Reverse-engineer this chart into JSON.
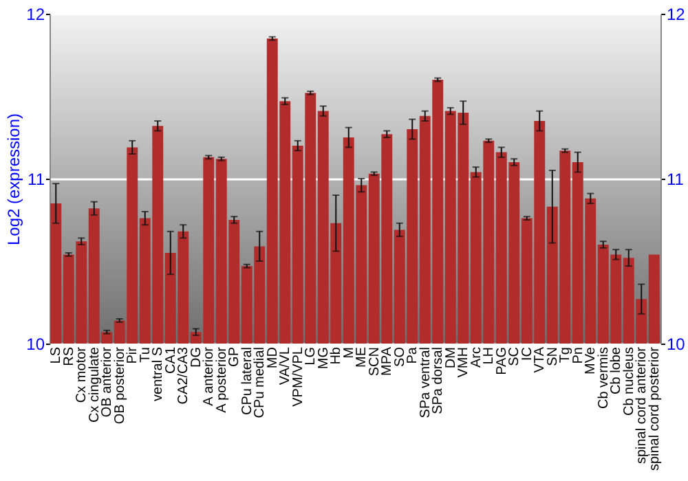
{
  "chart_data": {
    "type": "bar",
    "ylabel": "Log2 (expression)",
    "categories": [
      "LS",
      "RS",
      "Cx motor",
      "Cx cingulate",
      "OB anterior",
      "OB posterior",
      "Pir",
      "Tu",
      "ventral S",
      "CA1",
      "CA2/CA3",
      "DG",
      "A anterior",
      "A posterior",
      "GP",
      "CPu lateral",
      "CPu medial",
      "MD",
      "VA/VL",
      "VPM/VPL",
      "LG",
      "MG",
      "Hb",
      "M",
      "ME",
      "SCN",
      "MPA",
      "SO",
      "Pa",
      "SPa ventral",
      "SPa dorsal",
      "DM",
      "VMH",
      "Arc",
      "LH",
      "PAG",
      "SC",
      "IC",
      "VTA",
      "SN",
      "Tg",
      "Pn",
      "MVe",
      "Cb vermis",
      "Cb lobe",
      "Cb nucleus",
      "spinal cord anterior",
      "spinal cord posterior"
    ],
    "values": [
      10.85,
      10.54,
      10.62,
      10.82,
      10.07,
      10.14,
      11.19,
      10.76,
      11.32,
      10.55,
      10.68,
      10.07,
      11.13,
      11.12,
      10.75,
      10.47,
      10.59,
      11.85,
      11.47,
      11.2,
      11.52,
      11.41,
      10.73,
      11.25,
      10.96,
      11.03,
      11.27,
      10.69,
      11.3,
      11.38,
      11.6,
      11.41,
      11.4,
      11.04,
      11.23,
      11.16,
      11.1,
      10.76,
      11.35,
      10.83,
      11.17,
      11.1,
      10.88,
      10.6,
      10.54,
      10.52,
      10.27,
      10.54
    ],
    "errors": [
      0.12,
      0.01,
      0.02,
      0.04,
      0.01,
      0.01,
      0.04,
      0.04,
      0.03,
      0.13,
      0.04,
      0.02,
      0.01,
      0.01,
      0.02,
      0.01,
      0.09,
      0.01,
      0.02,
      0.03,
      0.01,
      0.03,
      0.17,
      0.06,
      0.04,
      0.01,
      0.02,
      0.04,
      0.06,
      0.03,
      0.01,
      0.02,
      0.07,
      0.03,
      0.01,
      0.03,
      0.02,
      0.01,
      0.06,
      0.22,
      0.01,
      0.06,
      0.03,
      0.02,
      0.03,
      0.05,
      0.09,
      null
    ],
    "color": "#b22c2c",
    "ylim": [
      10,
      12
    ],
    "yticks": [
      10,
      11,
      12
    ],
    "y2lim": [
      10,
      12
    ],
    "y2ticks": [
      10,
      11,
      12
    ],
    "grid": "y"
  }
}
